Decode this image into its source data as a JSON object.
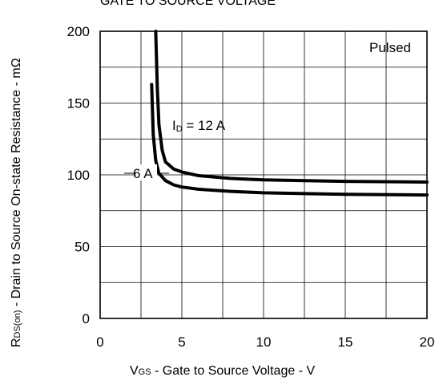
{
  "chart_data": {
    "type": "line",
    "title": "GATE TO SOURCE VOLTAGE",
    "xlabel": {
      "sym": "V",
      "sub": "GS",
      "rest": " - Gate to Source Voltage - V"
    },
    "ylabel": {
      "sym": "R",
      "sub": "DS(on)",
      "rest": " - Drain to Source On-state Resistance - mΩ"
    },
    "xlim": [
      0,
      20
    ],
    "ylim": [
      0,
      200
    ],
    "xticks": [
      0,
      5,
      10,
      15,
      20
    ],
    "yticks": [
      0,
      50,
      100,
      150,
      200
    ],
    "xtick_labels": [
      "0",
      "5",
      "10",
      "15",
      "20"
    ],
    "ytick_labels": [
      "0",
      "50",
      "100",
      "150",
      "200"
    ],
    "grid": true,
    "annotations": {
      "pulsed": "Pulsed",
      "id_prefix": "I",
      "id_sub": "D",
      "id_rest": " = 12 A",
      "six_a": "6 A"
    },
    "series": [
      {
        "x": [
          3.4,
          3.5,
          3.6,
          3.8,
          4.0,
          4.5,
          5.0,
          6.0,
          8.0,
          10.0,
          15.0,
          20.0
        ],
        "y": [
          200,
          160,
          135,
          117,
          109,
          104,
          102,
          99.5,
          97.5,
          96.5,
          95.5,
          95
        ]
      },
      {
        "x": [
          3.15,
          3.25,
          3.4,
          3.6,
          4.0,
          4.5,
          5.0,
          6.0,
          8.0,
          10.0,
          15.0,
          20.0
        ],
        "y": [
          163,
          128,
          110,
          101,
          96,
          93,
          91.5,
          90,
          88.5,
          87.5,
          86.5,
          86
        ]
      }
    ]
  }
}
